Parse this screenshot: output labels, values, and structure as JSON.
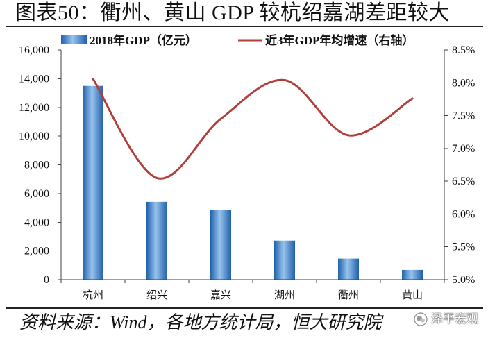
{
  "source": "资料来源：Wind，各地方统计局，恒大研究院",
  "watermark": "泽平宏观",
  "colors": {
    "bar_edge": "#2160AC",
    "bar_center": "#96C3EC",
    "line": "#B23F3A",
    "axis": "#404040"
  },
  "chart_data": {
    "type": "bar",
    "title": "图表50：衢州、黄山 GDP 较杭绍嘉湖差距较大",
    "categories": [
      "杭州",
      "绍兴",
      "嘉兴",
      "湖州",
      "衢州",
      "黄山"
    ],
    "series": [
      {
        "name": "2018年GDP（亿元）",
        "type": "bar",
        "axis": "left",
        "values": [
          13500,
          5420,
          4870,
          2720,
          1470,
          680
        ]
      },
      {
        "name": "近3年GDP年均增速（右轴）",
        "type": "line",
        "axis": "right",
        "unit": "%",
        "values": [
          8.06,
          6.55,
          7.45,
          8.04,
          7.2,
          7.76
        ]
      }
    ],
    "y_left": {
      "min": 0,
      "max": 16000,
      "step": 2000,
      "ticks": [
        "0",
        "2,000",
        "4,000",
        "6,000",
        "8,000",
        "10,000",
        "12,000",
        "14,000",
        "16,000"
      ]
    },
    "y_right": {
      "min": 5.0,
      "max": 8.5,
      "step": 0.5,
      "ticks": [
        "5.0%",
        "5.5%",
        "6.0%",
        "6.5%",
        "7.0%",
        "7.5%",
        "8.0%",
        "8.5%"
      ]
    },
    "legend": "top",
    "grid": false,
    "smooth_line": true
  }
}
